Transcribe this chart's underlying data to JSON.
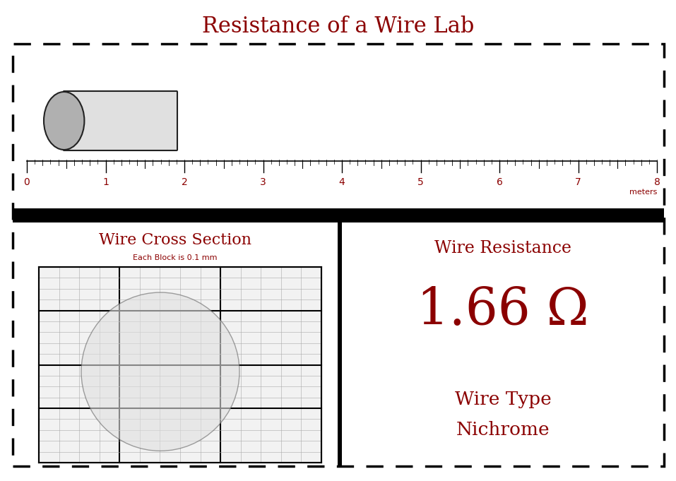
{
  "title": "Resistance of a Wire Lab",
  "title_color": "#8B0000",
  "title_fontsize": 22,
  "background_color": "#ffffff",
  "ruler_ticks": [
    0,
    1,
    2,
    3,
    4,
    5,
    6,
    7,
    8
  ],
  "ruler_label": "meters",
  "wire_resistance_title": "Wire Resistance",
  "wire_resistance_value": "1.66 Ω",
  "wire_type_label": "Wire Type",
  "wire_type_value": "Nichrome",
  "cross_section_title": "Wire Cross Section",
  "cross_section_subtitle": "Each Block is 0.1 mm",
  "dark_red": "#8B0000",
  "grid_color": "#aaaaaa",
  "grid_bold_color": "#000000",
  "fig_w": 9.57,
  "fig_h": 6.81,
  "dpi": 100
}
